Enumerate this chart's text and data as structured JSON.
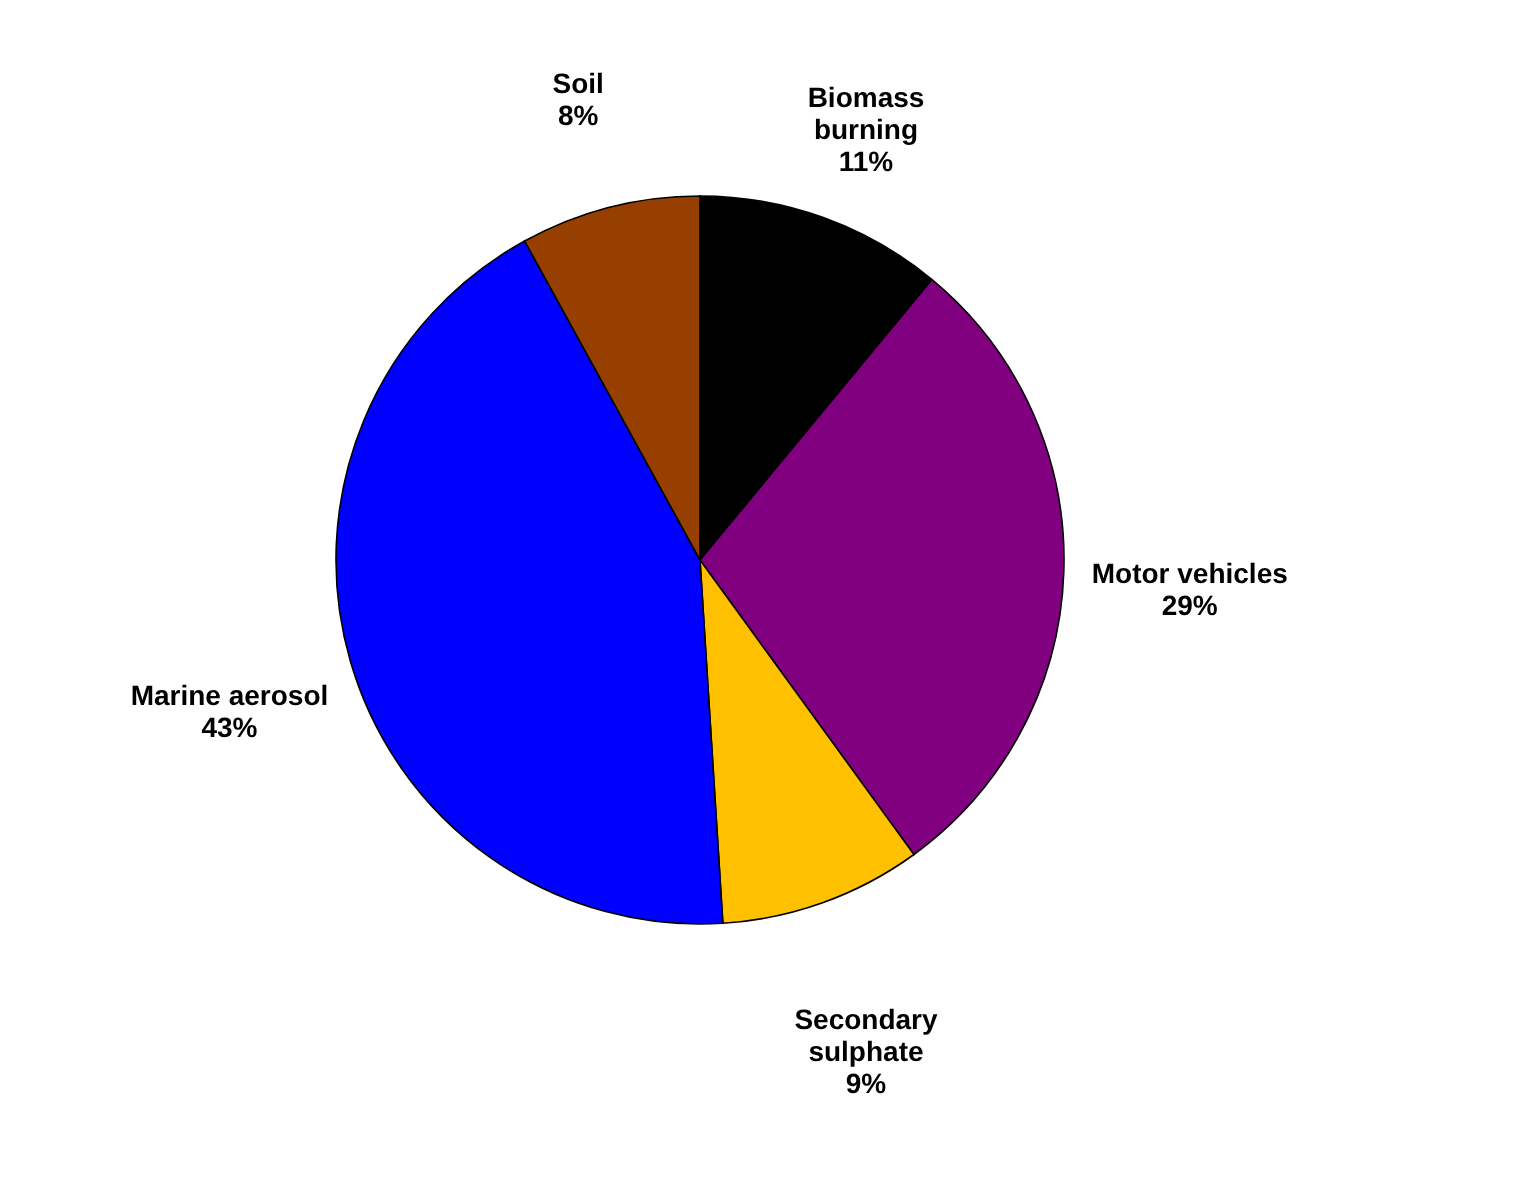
{
  "chart_data": {
    "type": "pie",
    "categories": [
      "Biomass burning",
      "Motor vehicles",
      "Secondary sulphate",
      "Marine aerosol",
      "Soil"
    ],
    "values": [
      11,
      29,
      9,
      43,
      8
    ],
    "colors": [
      "#000000",
      "#800080",
      "#ffc000",
      "#0000ff",
      "#963f00"
    ],
    "value_labels": [
      "11%",
      "29%",
      "9%",
      "43%",
      "8%"
    ],
    "legend": false
  }
}
